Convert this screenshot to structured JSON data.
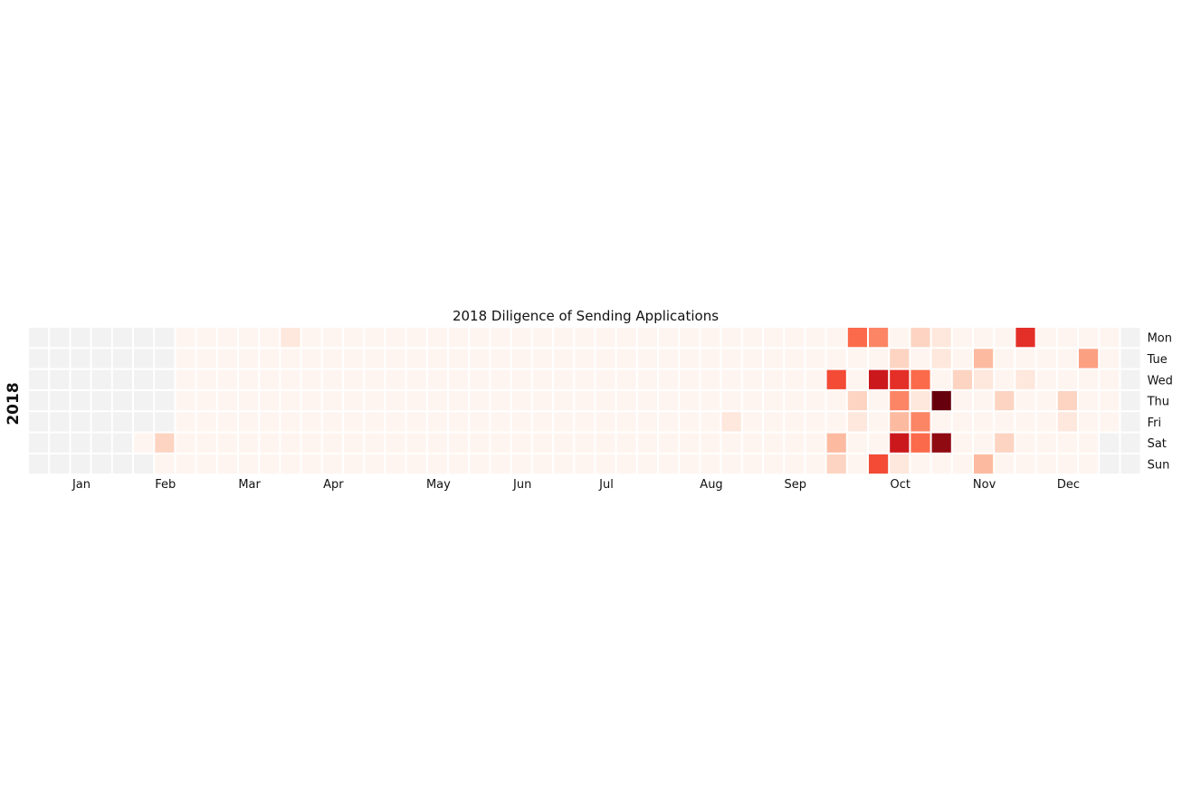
{
  "chart_data": {
    "type": "heatmap",
    "title": "2018 Diligence of Sending Applications",
    "year_label": "2018",
    "row_labels": [
      "Mon",
      "Tue",
      "Wed",
      "Thu",
      "Fri",
      "Sat",
      "Sun"
    ],
    "month_labels": [
      {
        "label": "Jan",
        "week": 2.5
      },
      {
        "label": "Feb",
        "week": 6.5
      },
      {
        "label": "Mar",
        "week": 10.5
      },
      {
        "label": "Apr",
        "week": 14.5
      },
      {
        "label": "May",
        "week": 19.5
      },
      {
        "label": "Jun",
        "week": 23.5
      },
      {
        "label": "Jul",
        "week": 27.5
      },
      {
        "label": "Aug",
        "week": 32.5
      },
      {
        "label": "Sep",
        "week": 36.5
      },
      {
        "label": "Oct",
        "week": 41.5
      },
      {
        "label": "Nov",
        "week": 45.5
      },
      {
        "label": "Dec",
        "week": 49.5
      }
    ],
    "weeks": 53,
    "no_data_color": "#f2f2f2",
    "colormap": "Reds",
    "grid": false,
    "legend": "none",
    "no_data_before": [
      7,
      7,
      7,
      7,
      7,
      5,
      6
    ],
    "no_data_after": [
      51,
      51,
      51,
      51,
      51,
      50,
      50
    ],
    "values": [
      [
        0,
        0,
        0,
        0,
        0,
        0,
        0,
        0,
        0,
        0,
        0,
        0,
        1,
        0,
        0,
        0,
        0,
        0,
        0,
        0,
        0,
        0,
        0,
        0,
        0,
        0,
        0,
        0,
        0,
        0,
        0,
        0,
        0,
        0,
        0,
        0,
        0,
        0,
        0,
        6,
        5,
        0,
        2,
        1,
        0,
        0,
        0,
        8,
        0,
        0,
        0,
        0,
        0
      ],
      [
        0,
        0,
        0,
        0,
        0,
        0,
        0,
        0,
        0,
        0,
        0,
        0,
        0,
        0,
        0,
        0,
        0,
        0,
        0,
        0,
        0,
        0,
        0,
        0,
        0,
        0,
        0,
        0,
        0,
        0,
        0,
        0,
        0,
        0,
        0,
        0,
        0,
        0,
        0,
        0,
        0,
        2,
        0,
        1,
        0,
        3,
        0,
        0,
        0,
        0,
        4,
        0,
        0
      ],
      [
        0,
        0,
        0,
        0,
        0,
        0,
        0,
        0,
        0,
        0,
        0,
        0,
        0,
        0,
        0,
        0,
        0,
        0,
        0,
        0,
        0,
        0,
        0,
        0,
        0,
        0,
        0,
        0,
        0,
        0,
        0,
        0,
        0,
        0,
        0,
        0,
        0,
        0,
        7,
        0,
        9,
        8,
        6,
        0,
        2,
        1,
        0,
        1,
        0,
        0,
        0,
        0,
        0
      ],
      [
        0,
        0,
        0,
        0,
        0,
        0,
        0,
        0,
        0,
        0,
        0,
        0,
        0,
        0,
        0,
        0,
        0,
        0,
        0,
        0,
        0,
        0,
        0,
        0,
        0,
        0,
        0,
        0,
        0,
        0,
        0,
        0,
        0,
        0,
        0,
        0,
        0,
        0,
        0,
        2,
        0,
        5,
        1,
        12,
        0,
        0,
        2,
        0,
        0,
        2,
        0,
        0,
        0
      ],
      [
        0,
        0,
        0,
        0,
        0,
        0,
        0,
        0,
        0,
        0,
        0,
        0,
        0,
        0,
        0,
        0,
        0,
        0,
        0,
        0,
        0,
        0,
        0,
        0,
        0,
        0,
        0,
        0,
        0,
        0,
        0,
        0,
        0,
        1,
        0,
        0,
        0,
        0,
        0,
        1,
        0,
        3,
        5,
        0,
        0,
        0,
        0,
        0,
        0,
        1,
        0,
        0,
        0
      ],
      [
        0,
        0,
        0,
        0,
        0,
        0,
        2,
        0,
        0,
        0,
        0,
        0,
        0,
        0,
        0,
        0,
        0,
        0,
        0,
        0,
        0,
        0,
        0,
        0,
        0,
        0,
        0,
        0,
        0,
        0,
        0,
        0,
        0,
        0,
        0,
        0,
        0,
        0,
        3,
        0,
        0,
        9,
        6,
        11,
        0,
        0,
        2,
        0,
        0,
        0,
        0,
        0
      ],
      [
        0,
        0,
        0,
        0,
        0,
        0,
        0,
        0,
        0,
        0,
        0,
        0,
        0,
        0,
        0,
        0,
        0,
        0,
        0,
        0,
        0,
        0,
        0,
        0,
        0,
        0,
        0,
        0,
        0,
        0,
        0,
        0,
        0,
        0,
        0,
        0,
        0,
        0,
        2,
        0,
        7,
        1,
        0,
        0,
        0,
        3,
        0,
        0,
        0,
        0,
        0,
        0
      ]
    ],
    "value_range": [
      0,
      12
    ]
  }
}
